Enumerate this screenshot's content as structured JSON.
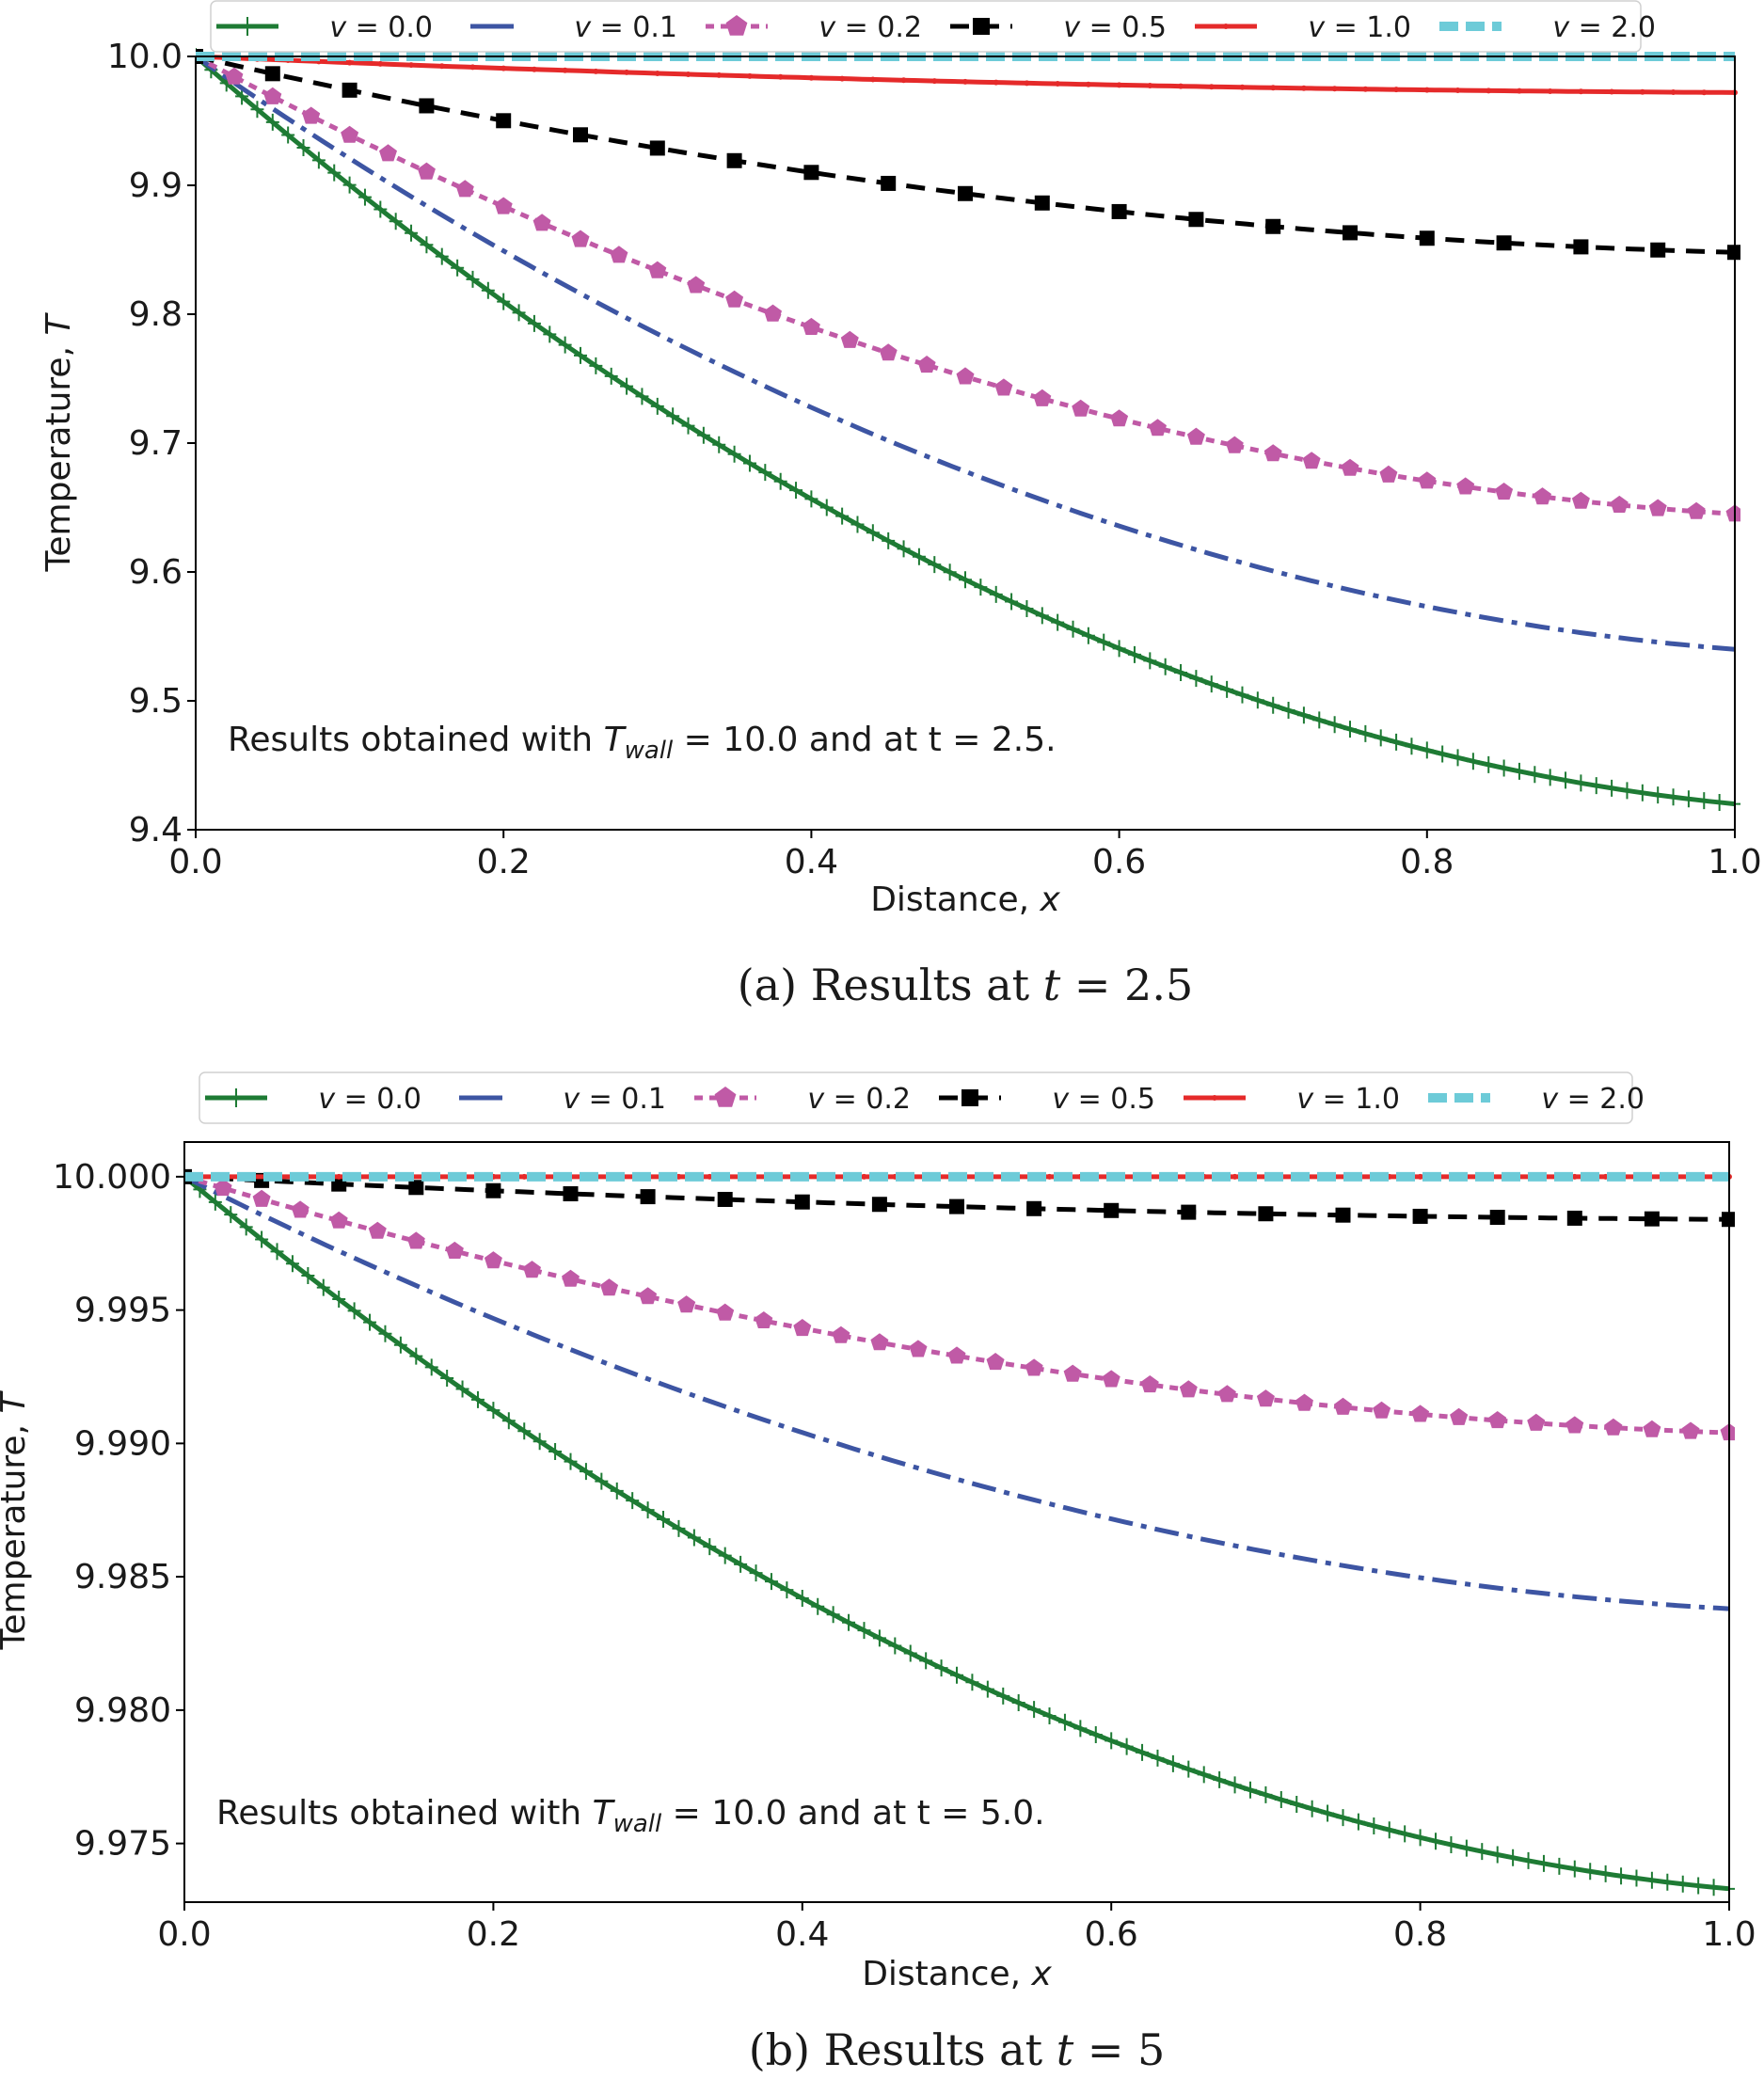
{
  "colors": {
    "v0": "#1e7b34",
    "v01": "#3d55a3",
    "v02": "#c05aa6",
    "v05": "#000000",
    "v1": "#e52a2a",
    "v2": "#6dcbd8"
  },
  "legend_labels": [
    "v = 0.0",
    "v = 0.1",
    "v = 0.2",
    "v = 0.5",
    "v = 1.0",
    "v = 2.0"
  ],
  "chart_data": [
    {
      "id": "a",
      "type": "line",
      "caption": "(a) Results at t = 2.5",
      "caption_prefix": "(a)",
      "caption_text": "Results at",
      "caption_var": "t",
      "caption_eq": "= 2.5",
      "xlabel": "Distance, x",
      "xlabel_text": "Distance,",
      "xlabel_var": "x",
      "ylabel": "Temperature, T",
      "ylabel_text": "Temperature,",
      "ylabel_var": "T",
      "xlim": [
        0.0,
        1.0
      ],
      "ylim": [
        9.4,
        10.0
      ],
      "xticks": [
        0.0,
        0.2,
        0.4,
        0.6,
        0.8,
        1.0
      ],
      "xtick_labels": [
        "0.0",
        "0.2",
        "0.4",
        "0.6",
        "0.8",
        "1.0"
      ],
      "yticks": [
        9.4,
        9.5,
        9.6,
        9.7,
        9.8,
        9.9,
        10.0
      ],
      "ytick_labels": [
        "9.4",
        "9.5",
        "9.6",
        "9.7",
        "9.8",
        "9.9",
        "10.0"
      ],
      "annotation": {
        "before": "Results obtained with",
        "var_main": "T",
        "var_sub": "wall",
        "after": "= 10.0 and  at t = 2.5."
      },
      "series": [
        {
          "name": "v = 0.0",
          "drop": 0.58
        },
        {
          "name": "v = 0.1",
          "drop": 0.46
        },
        {
          "name": "v = 0.2",
          "drop": 0.355
        },
        {
          "name": "v = 0.5",
          "drop": 0.152
        },
        {
          "name": "v = 1.0",
          "drop": 0.028
        },
        {
          "name": "v = 2.0",
          "drop": 0.0
        }
      ]
    },
    {
      "id": "b",
      "type": "line",
      "caption": "(b) Results at t = 5",
      "caption_prefix": "(b)",
      "caption_text": "Results at",
      "caption_var": "t",
      "caption_eq": "= 5",
      "xlabel": "Distance, x",
      "xlabel_text": "Distance,",
      "xlabel_var": "x",
      "ylabel": "Temperature, T",
      "ylabel_text": "Temperature,",
      "ylabel_var": "T",
      "xlim": [
        0.0,
        1.0
      ],
      "ylim": [
        9.9728,
        10.0013
      ],
      "xticks": [
        0.0,
        0.2,
        0.4,
        0.6,
        0.8,
        1.0
      ],
      "xtick_labels": [
        "0.0",
        "0.2",
        "0.4",
        "0.6",
        "0.8",
        "1.0"
      ],
      "yticks": [
        9.975,
        9.98,
        9.985,
        9.99,
        9.995,
        10.0
      ],
      "ytick_labels": [
        "9.975",
        "9.980",
        "9.985",
        "9.990",
        "9.995",
        "10.000"
      ],
      "annotation": {
        "before": "Results obtained with",
        "var_main": "T",
        "var_sub": "wall",
        "after": "= 10.0 and  at t = 5.0."
      },
      "series": [
        {
          "name": "v = 0.0",
          "drop": 0.0267
        },
        {
          "name": "v = 0.1",
          "drop": 0.0162
        },
        {
          "name": "v = 0.2",
          "drop": 0.0096
        },
        {
          "name": "v = 0.5",
          "drop": 0.0016
        },
        {
          "name": "v = 1.0",
          "drop": 0.0
        },
        {
          "name": "v = 2.0",
          "drop": 0.0
        }
      ]
    }
  ]
}
